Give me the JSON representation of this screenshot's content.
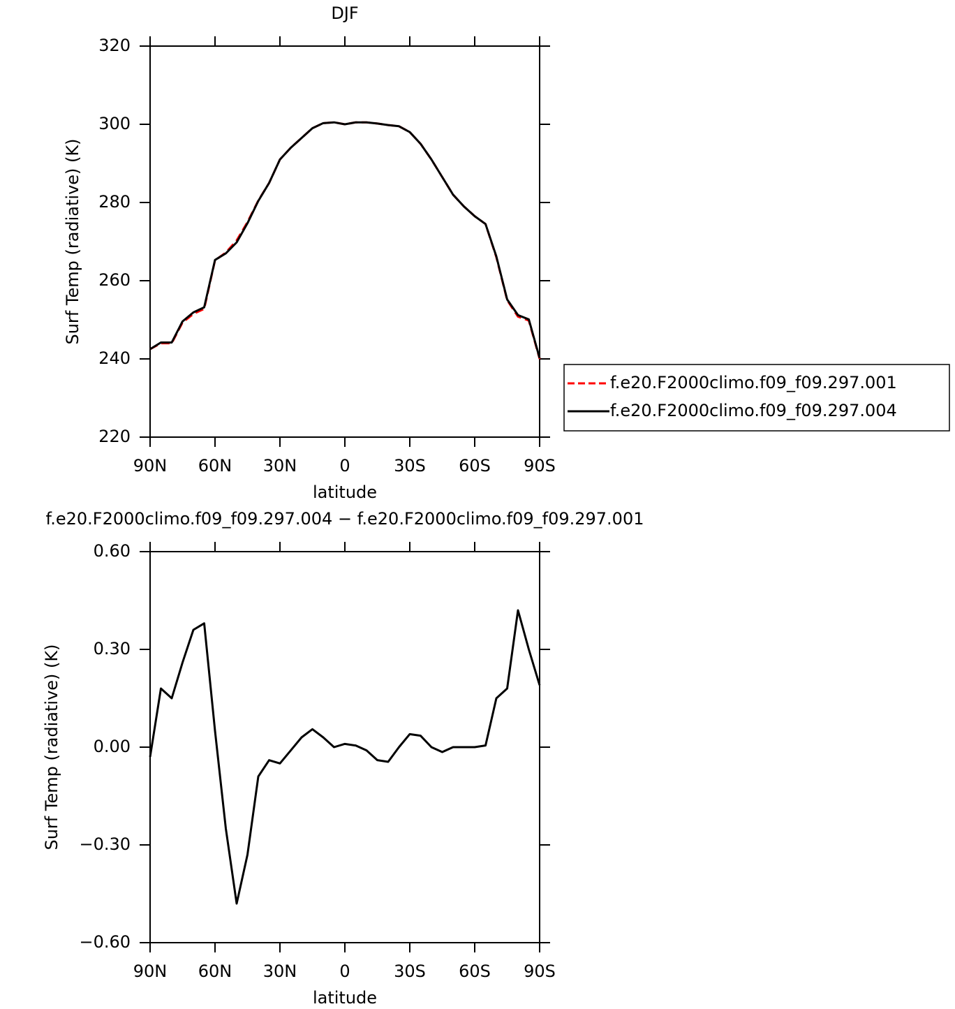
{
  "chart_data": [
    {
      "type": "line",
      "title": "DJF",
      "xlabel": "latitude",
      "ylabel": "Surf Temp (radiative) (K)",
      "x": [
        90,
        85,
        80,
        75,
        70,
        65,
        60,
        55,
        50,
        45,
        40,
        35,
        30,
        25,
        20,
        15,
        10,
        5,
        0,
        -5,
        -10,
        -15,
        -20,
        -25,
        -30,
        -35,
        -40,
        -45,
        -50,
        -55,
        -60,
        -65,
        -70,
        -75,
        -80,
        -85,
        -90
      ],
      "xlim": [
        90,
        -90
      ],
      "xticks": [
        {
          "value": 90,
          "label": "90N"
        },
        {
          "value": 60,
          "label": "60N"
        },
        {
          "value": 30,
          "label": "30N"
        },
        0,
        {
          "value": -30,
          "label": "30S"
        },
        {
          "value": -60,
          "label": "60S"
        },
        {
          "value": -90,
          "label": "90S"
        }
      ],
      "ylim": [
        220,
        320
      ],
      "yticks": [
        220,
        240,
        260,
        280,
        300,
        320
      ],
      "legend": "right",
      "series": [
        {
          "name": "f.e20.F2000climo.f09_f09.297.001",
          "color": "#ff0000",
          "dash": true,
          "values": [
            242.5,
            244,
            244,
            249.3,
            251.5,
            252.8,
            265.2,
            267.2,
            270.3,
            275,
            280.5,
            285,
            291,
            294,
            296.5,
            299,
            300.3,
            300.5,
            300,
            300.5,
            300.5,
            300.2,
            299.8,
            299.5,
            298,
            295,
            291,
            286.5,
            282,
            279,
            276.5,
            274.5,
            266,
            255,
            250.8,
            249.8,
            240
          ]
        },
        {
          "name": "f.e20.F2000climo.f09_f09.297.004",
          "color": "#000000",
          "dash": false,
          "values": [
            242.5,
            244.2,
            244.2,
            249.6,
            251.9,
            253.2,
            265.3,
            267,
            269.8,
            274.7,
            280.4,
            285,
            291,
            294,
            296.5,
            299,
            300.3,
            300.5,
            300,
            300.5,
            300.5,
            300.2,
            299.8,
            299.5,
            298,
            295,
            291,
            286.5,
            282,
            279,
            276.5,
            274.5,
            266.2,
            255.2,
            251.2,
            250.1,
            240.2
          ]
        }
      ]
    },
    {
      "type": "line",
      "title": "f.e20.F2000climo.f09_f09.297.004 − f.e20.F2000climo.f09_f09.297.001",
      "xlabel": "latitude",
      "ylabel": "Surf Temp (radiative) (K)",
      "x": [
        90,
        85,
        80,
        75,
        70,
        65,
        60,
        55,
        50,
        45,
        40,
        35,
        30,
        25,
        20,
        15,
        10,
        5,
        0,
        -5,
        -10,
        -15,
        -20,
        -25,
        -30,
        -35,
        -40,
        -45,
        -50,
        -55,
        -60,
        -65,
        -70,
        -75,
        -80,
        -85,
        -90
      ],
      "xlim": [
        90,
        -90
      ],
      "xticks": [
        {
          "value": 90,
          "label": "90N"
        },
        {
          "value": 60,
          "label": "60N"
        },
        {
          "value": 30,
          "label": "30N"
        },
        0,
        {
          "value": -30,
          "label": "30S"
        },
        {
          "value": -60,
          "label": "60S"
        },
        {
          "value": -90,
          "label": "90S"
        }
      ],
      "ylim": [
        -0.6,
        0.6
      ],
      "yticks": [
        {
          "value": -0.6,
          "label": "−0.60"
        },
        {
          "value": -0.3,
          "label": "−0.30"
        },
        {
          "value": 0,
          "label": "0.00"
        },
        {
          "value": 0.3,
          "label": "0.30"
        },
        {
          "value": 0.6,
          "label": "0.60"
        }
      ],
      "series": [
        {
          "color": "#000000",
          "dash": false,
          "values": [
            -0.03,
            0.18,
            0.15,
            0.26,
            0.36,
            0.38,
            0.05,
            -0.25,
            -0.48,
            -0.33,
            -0.09,
            -0.04,
            -0.05,
            -0.01,
            0.03,
            0.055,
            0.03,
            0.0,
            0.01,
            0.005,
            -0.01,
            -0.04,
            -0.045,
            0.0,
            0.04,
            0.035,
            0.0,
            -0.015,
            0.0,
            0.0,
            0.0,
            0.005,
            0.15,
            0.18,
            0.42,
            0.3,
            0.19
          ]
        }
      ]
    }
  ]
}
